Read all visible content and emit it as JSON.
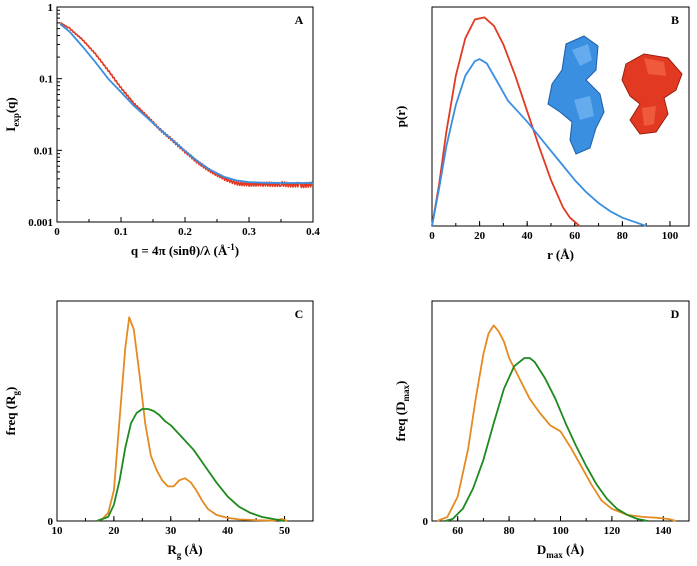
{
  "colors": {
    "red": "#e23a22",
    "blue": "#3a8fe0",
    "orange": "#e48a22",
    "green": "#1e8a1e"
  },
  "chart_data": [
    {
      "panel": "A",
      "type": "line",
      "ylabel_main": "I",
      "ylabel_sub": "exp",
      "ylabel_tail": "(q)",
      "xlabel": "q = 4π (sinθ)/λ  (Å",
      "xlabel_sup": "-1",
      "xlabel_tail": ")",
      "xlim": [
        0,
        0.4
      ],
      "ylim": [
        0.001,
        1
      ],
      "yscale": "log",
      "xticks": [
        0,
        0.1,
        0.2,
        0.3,
        0.4
      ],
      "xtick_labels": [
        "0",
        "0.1",
        "0.2",
        "0.3",
        "0.4"
      ],
      "yticks": [
        0.001,
        0.01,
        0.1,
        1
      ],
      "ytick_labels": [
        "0.001",
        "0.01",
        "0.1",
        "1"
      ],
      "series": [
        {
          "color": "red",
          "noise": true,
          "x": [
            0.005,
            0.02,
            0.04,
            0.06,
            0.08,
            0.1,
            0.12,
            0.14,
            0.16,
            0.18,
            0.2,
            0.22,
            0.24,
            0.26,
            0.27,
            0.28,
            0.3,
            0.32,
            0.35,
            0.38,
            0.4
          ],
          "y": [
            0.6,
            0.5,
            0.35,
            0.22,
            0.13,
            0.075,
            0.045,
            0.03,
            0.02,
            0.014,
            0.0095,
            0.0068,
            0.0052,
            0.0041,
            0.0037,
            0.0035,
            0.0034,
            0.0033,
            0.0034,
            0.0033,
            0.0033
          ]
        },
        {
          "color": "blue",
          "noise": false,
          "x": [
            0.005,
            0.02,
            0.04,
            0.06,
            0.08,
            0.1,
            0.12,
            0.14,
            0.16,
            0.18,
            0.2,
            0.22,
            0.24,
            0.26,
            0.28,
            0.3,
            0.33,
            0.36,
            0.4
          ],
          "y": [
            0.58,
            0.45,
            0.28,
            0.17,
            0.1,
            0.065,
            0.042,
            0.029,
            0.02,
            0.014,
            0.0098,
            0.007,
            0.0053,
            0.0043,
            0.0038,
            0.0036,
            0.0035,
            0.0035,
            0.0035
          ]
        }
      ]
    },
    {
      "panel": "B",
      "type": "line",
      "ylabel_main": "p(r)",
      "xlabel": "r (Å)",
      "xlim": [
        0,
        108
      ],
      "ylim": [
        0,
        1.05
      ],
      "xticks": [
        0,
        20,
        40,
        60,
        80,
        100
      ],
      "xtick_labels": [
        "0",
        "20",
        "40",
        "60",
        "80",
        "100"
      ],
      "series": [
        {
          "color": "red",
          "x": [
            0,
            3,
            6,
            10,
            14,
            18,
            22,
            26,
            30,
            35,
            40,
            45,
            50,
            55,
            58,
            61,
            62
          ],
          "y": [
            0,
            0.2,
            0.45,
            0.72,
            0.9,
            0.99,
            1.0,
            0.96,
            0.87,
            0.72,
            0.55,
            0.38,
            0.22,
            0.09,
            0.04,
            0.01,
            0
          ]
        },
        {
          "color": "blue",
          "x": [
            0,
            3,
            6,
            10,
            14,
            18,
            20,
            23,
            27,
            32,
            36,
            40,
            45,
            50,
            55,
            60,
            65,
            70,
            75,
            80,
            85,
            90
          ],
          "y": [
            0,
            0.18,
            0.38,
            0.58,
            0.72,
            0.79,
            0.8,
            0.78,
            0.7,
            0.6,
            0.55,
            0.5,
            0.43,
            0.36,
            0.29,
            0.22,
            0.16,
            0.11,
            0.07,
            0.04,
            0.02,
            0
          ]
        }
      ]
    },
    {
      "panel": "C",
      "type": "line",
      "ylabel_main": "freq (R",
      "ylabel_sub": "g",
      "ylabel_tail": ")",
      "xlabel": "R",
      "xlabel_sub": "g",
      "xlabel_tail": "  (Å)",
      "xlim": [
        10,
        55
      ],
      "ylim": [
        0,
        1.08
      ],
      "xticks": [
        10,
        20,
        30,
        40,
        50
      ],
      "xtick_labels": [
        "10",
        "20",
        "30",
        "40",
        "50"
      ],
      "yticks": [
        0
      ],
      "ytick_labels": [
        "0"
      ],
      "series": [
        {
          "color": "orange",
          "x": [
            17,
            18,
            19,
            20,
            21,
            22,
            22.7,
            23.5,
            24.5,
            25.5,
            26.5,
            27.5,
            28.5,
            29.5,
            30.5,
            31.5,
            32.5,
            33.5,
            34.5,
            35.5,
            36.5,
            38,
            40,
            42,
            45,
            48,
            49.5,
            50.5
          ],
          "y": [
            0,
            0.01,
            0.04,
            0.15,
            0.5,
            0.85,
            1.0,
            0.94,
            0.72,
            0.48,
            0.32,
            0.25,
            0.2,
            0.17,
            0.17,
            0.2,
            0.21,
            0.19,
            0.15,
            0.1,
            0.06,
            0.03,
            0.015,
            0.008,
            0.004,
            0.002,
            0.01,
            0
          ]
        },
        {
          "color": "green",
          "x": [
            17,
            19,
            20,
            21,
            22,
            23,
            24,
            25,
            26,
            27,
            28,
            29,
            30,
            31,
            32,
            34,
            36,
            38,
            40,
            42,
            44,
            46,
            48,
            50
          ],
          "y": [
            0,
            0.02,
            0.08,
            0.2,
            0.36,
            0.48,
            0.53,
            0.55,
            0.55,
            0.54,
            0.52,
            0.49,
            0.47,
            0.44,
            0.41,
            0.35,
            0.27,
            0.19,
            0.12,
            0.07,
            0.04,
            0.02,
            0.01,
            0
          ]
        }
      ]
    },
    {
      "panel": "D",
      "type": "line",
      "ylabel_main": "freq (D",
      "ylabel_sub": "max",
      "ylabel_tail": ")",
      "xlabel": "D",
      "xlabel_sub": "max",
      "xlabel_tail": "  (Å)",
      "xlim": [
        50,
        150
      ],
      "ylim": [
        0,
        1.08
      ],
      "xticks": [
        60,
        80,
        100,
        120,
        140
      ],
      "xtick_labels": [
        "60",
        "80",
        "100",
        "120",
        "140"
      ],
      "yticks": [
        0
      ],
      "ytick_labels": [
        "0"
      ],
      "series": [
        {
          "color": "orange",
          "x": [
            52,
            56,
            60,
            64,
            67,
            70,
            72,
            74,
            76,
            78,
            80,
            84,
            88,
            92,
            96,
            100,
            104,
            108,
            112,
            116,
            120,
            126,
            132,
            138,
            142,
            145
          ],
          "y": [
            0,
            0.02,
            0.12,
            0.35,
            0.6,
            0.82,
            0.92,
            0.96,
            0.93,
            0.88,
            0.8,
            0.7,
            0.6,
            0.53,
            0.47,
            0.44,
            0.36,
            0.27,
            0.18,
            0.1,
            0.06,
            0.03,
            0.02,
            0.015,
            0.01,
            0
          ]
        },
        {
          "color": "green",
          "x": [
            55,
            58,
            62,
            66,
            70,
            74,
            78,
            82,
            86,
            88,
            90,
            94,
            98,
            102,
            106,
            110,
            114,
            118,
            122,
            126,
            130,
            134
          ],
          "y": [
            0,
            0.01,
            0.06,
            0.16,
            0.3,
            0.48,
            0.65,
            0.76,
            0.8,
            0.8,
            0.78,
            0.7,
            0.6,
            0.48,
            0.37,
            0.27,
            0.18,
            0.11,
            0.06,
            0.03,
            0.01,
            0
          ]
        }
      ]
    }
  ]
}
